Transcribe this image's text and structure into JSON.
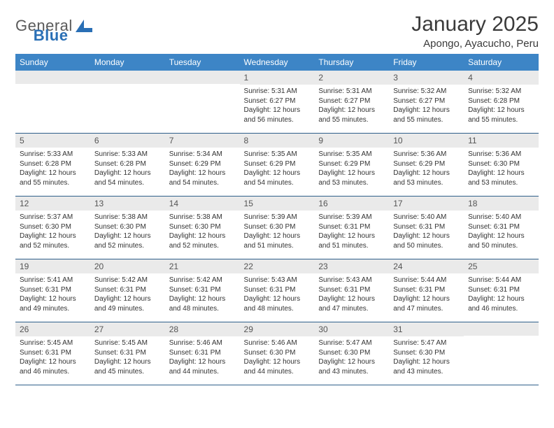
{
  "brand": {
    "name_part1": "General",
    "name_part2": "Blue"
  },
  "title": "January 2025",
  "location": "Apongo, Ayacucho, Peru",
  "colors": {
    "header_bg": "#3d85c6",
    "header_text": "#ffffff",
    "daynum_bg": "#eaeaea",
    "cell_border": "#2e5f8a",
    "logo_blue": "#2a6fb5",
    "text": "#333333"
  },
  "day_headers": [
    "Sunday",
    "Monday",
    "Tuesday",
    "Wednesday",
    "Thursday",
    "Friday",
    "Saturday"
  ],
  "weeks": [
    [
      {
        "day": "",
        "lines": []
      },
      {
        "day": "",
        "lines": []
      },
      {
        "day": "",
        "lines": []
      },
      {
        "day": "1",
        "lines": [
          "Sunrise: 5:31 AM",
          "Sunset: 6:27 PM",
          "Daylight: 12 hours and 56 minutes."
        ]
      },
      {
        "day": "2",
        "lines": [
          "Sunrise: 5:31 AM",
          "Sunset: 6:27 PM",
          "Daylight: 12 hours and 55 minutes."
        ]
      },
      {
        "day": "3",
        "lines": [
          "Sunrise: 5:32 AM",
          "Sunset: 6:27 PM",
          "Daylight: 12 hours and 55 minutes."
        ]
      },
      {
        "day": "4",
        "lines": [
          "Sunrise: 5:32 AM",
          "Sunset: 6:28 PM",
          "Daylight: 12 hours and 55 minutes."
        ]
      }
    ],
    [
      {
        "day": "5",
        "lines": [
          "Sunrise: 5:33 AM",
          "Sunset: 6:28 PM",
          "Daylight: 12 hours and 55 minutes."
        ]
      },
      {
        "day": "6",
        "lines": [
          "Sunrise: 5:33 AM",
          "Sunset: 6:28 PM",
          "Daylight: 12 hours and 54 minutes."
        ]
      },
      {
        "day": "7",
        "lines": [
          "Sunrise: 5:34 AM",
          "Sunset: 6:29 PM",
          "Daylight: 12 hours and 54 minutes."
        ]
      },
      {
        "day": "8",
        "lines": [
          "Sunrise: 5:35 AM",
          "Sunset: 6:29 PM",
          "Daylight: 12 hours and 54 minutes."
        ]
      },
      {
        "day": "9",
        "lines": [
          "Sunrise: 5:35 AM",
          "Sunset: 6:29 PM",
          "Daylight: 12 hours and 53 minutes."
        ]
      },
      {
        "day": "10",
        "lines": [
          "Sunrise: 5:36 AM",
          "Sunset: 6:29 PM",
          "Daylight: 12 hours and 53 minutes."
        ]
      },
      {
        "day": "11",
        "lines": [
          "Sunrise: 5:36 AM",
          "Sunset: 6:30 PM",
          "Daylight: 12 hours and 53 minutes."
        ]
      }
    ],
    [
      {
        "day": "12",
        "lines": [
          "Sunrise: 5:37 AM",
          "Sunset: 6:30 PM",
          "Daylight: 12 hours and 52 minutes."
        ]
      },
      {
        "day": "13",
        "lines": [
          "Sunrise: 5:38 AM",
          "Sunset: 6:30 PM",
          "Daylight: 12 hours and 52 minutes."
        ]
      },
      {
        "day": "14",
        "lines": [
          "Sunrise: 5:38 AM",
          "Sunset: 6:30 PM",
          "Daylight: 12 hours and 52 minutes."
        ]
      },
      {
        "day": "15",
        "lines": [
          "Sunrise: 5:39 AM",
          "Sunset: 6:30 PM",
          "Daylight: 12 hours and 51 minutes."
        ]
      },
      {
        "day": "16",
        "lines": [
          "Sunrise: 5:39 AM",
          "Sunset: 6:31 PM",
          "Daylight: 12 hours and 51 minutes."
        ]
      },
      {
        "day": "17",
        "lines": [
          "Sunrise: 5:40 AM",
          "Sunset: 6:31 PM",
          "Daylight: 12 hours and 50 minutes."
        ]
      },
      {
        "day": "18",
        "lines": [
          "Sunrise: 5:40 AM",
          "Sunset: 6:31 PM",
          "Daylight: 12 hours and 50 minutes."
        ]
      }
    ],
    [
      {
        "day": "19",
        "lines": [
          "Sunrise: 5:41 AM",
          "Sunset: 6:31 PM",
          "Daylight: 12 hours and 49 minutes."
        ]
      },
      {
        "day": "20",
        "lines": [
          "Sunrise: 5:42 AM",
          "Sunset: 6:31 PM",
          "Daylight: 12 hours and 49 minutes."
        ]
      },
      {
        "day": "21",
        "lines": [
          "Sunrise: 5:42 AM",
          "Sunset: 6:31 PM",
          "Daylight: 12 hours and 48 minutes."
        ]
      },
      {
        "day": "22",
        "lines": [
          "Sunrise: 5:43 AM",
          "Sunset: 6:31 PM",
          "Daylight: 12 hours and 48 minutes."
        ]
      },
      {
        "day": "23",
        "lines": [
          "Sunrise: 5:43 AM",
          "Sunset: 6:31 PM",
          "Daylight: 12 hours and 47 minutes."
        ]
      },
      {
        "day": "24",
        "lines": [
          "Sunrise: 5:44 AM",
          "Sunset: 6:31 PM",
          "Daylight: 12 hours and 47 minutes."
        ]
      },
      {
        "day": "25",
        "lines": [
          "Sunrise: 5:44 AM",
          "Sunset: 6:31 PM",
          "Daylight: 12 hours and 46 minutes."
        ]
      }
    ],
    [
      {
        "day": "26",
        "lines": [
          "Sunrise: 5:45 AM",
          "Sunset: 6:31 PM",
          "Daylight: 12 hours and 46 minutes."
        ]
      },
      {
        "day": "27",
        "lines": [
          "Sunrise: 5:45 AM",
          "Sunset: 6:31 PM",
          "Daylight: 12 hours and 45 minutes."
        ]
      },
      {
        "day": "28",
        "lines": [
          "Sunrise: 5:46 AM",
          "Sunset: 6:31 PM",
          "Daylight: 12 hours and 44 minutes."
        ]
      },
      {
        "day": "29",
        "lines": [
          "Sunrise: 5:46 AM",
          "Sunset: 6:30 PM",
          "Daylight: 12 hours and 44 minutes."
        ]
      },
      {
        "day": "30",
        "lines": [
          "Sunrise: 5:47 AM",
          "Sunset: 6:30 PM",
          "Daylight: 12 hours and 43 minutes."
        ]
      },
      {
        "day": "31",
        "lines": [
          "Sunrise: 5:47 AM",
          "Sunset: 6:30 PM",
          "Daylight: 12 hours and 43 minutes."
        ]
      },
      {
        "day": "",
        "lines": []
      }
    ]
  ]
}
